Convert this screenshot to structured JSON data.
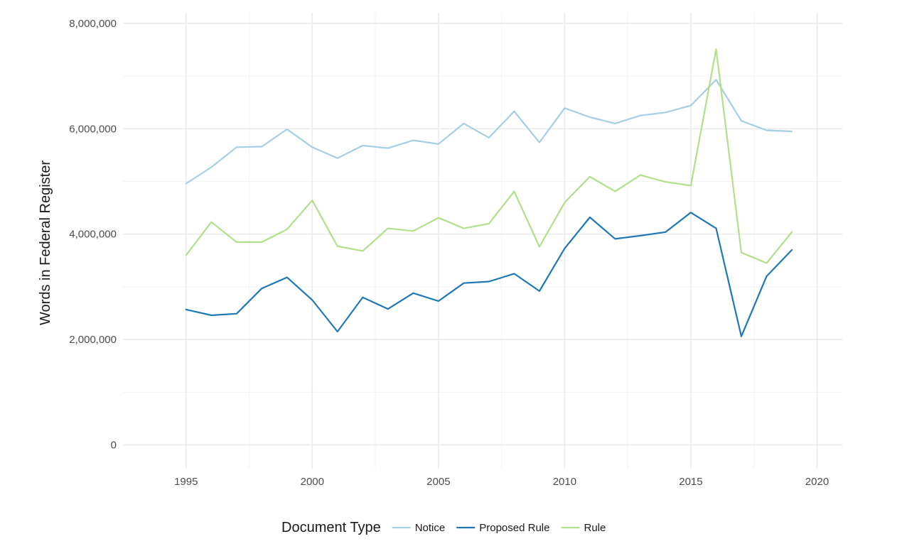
{
  "chart_data": {
    "type": "line",
    "ylabel": "Words in Federal Register",
    "xlabel": "",
    "xlim": [
      1992.5,
      2021
    ],
    "ylim": [
      -450000,
      8200000
    ],
    "x_ticks": [
      1995,
      2000,
      2005,
      2010,
      2015,
      2020
    ],
    "x_tick_labels": [
      "1995",
      "2000",
      "2005",
      "2010",
      "2015",
      "2020"
    ],
    "y_ticks": [
      0,
      2000000,
      4000000,
      6000000,
      8000000
    ],
    "y_tick_labels": [
      "0",
      "2,000,000",
      "4,000,000",
      "6,000,000",
      "8,000,000"
    ],
    "grid": true,
    "legend": {
      "position": "bottom",
      "title": "Document Type"
    },
    "x": [
      1995,
      1996,
      1997,
      1998,
      1999,
      2000,
      2001,
      2002,
      2003,
      2004,
      2005,
      2006,
      2007,
      2008,
      2009,
      2010,
      2011,
      2012,
      2013,
      2014,
      2015,
      2016,
      2017,
      2018,
      2019
    ],
    "series": [
      {
        "name": "Notice",
        "color": "#a6cee3",
        "values": [
          4960000,
          5270000,
          5650000,
          5660000,
          5990000,
          5650000,
          5440000,
          5680000,
          5630000,
          5780000,
          5710000,
          6100000,
          5830000,
          6330000,
          5740000,
          6390000,
          6220000,
          6100000,
          6250000,
          6310000,
          6440000,
          6930000,
          6150000,
          5970000,
          5950000
        ]
      },
      {
        "name": "Proposed Rule",
        "color": "#1f78b4",
        "values": [
          2570000,
          2460000,
          2490000,
          2970000,
          3180000,
          2750000,
          2150000,
          2800000,
          2580000,
          2880000,
          2730000,
          3070000,
          3100000,
          3250000,
          2920000,
          3730000,
          4320000,
          3910000,
          3970000,
          4040000,
          4410000,
          4110000,
          2060000,
          3200000,
          3700000
        ]
      },
      {
        "name": "Rule",
        "color": "#b2df8a",
        "values": [
          3600000,
          4230000,
          3850000,
          3850000,
          4090000,
          4640000,
          3770000,
          3680000,
          4110000,
          4060000,
          4310000,
          4110000,
          4200000,
          4810000,
          3760000,
          4600000,
          5090000,
          4810000,
          5120000,
          4990000,
          4920000,
          7510000,
          3650000,
          3450000,
          4040000
        ]
      }
    ]
  }
}
